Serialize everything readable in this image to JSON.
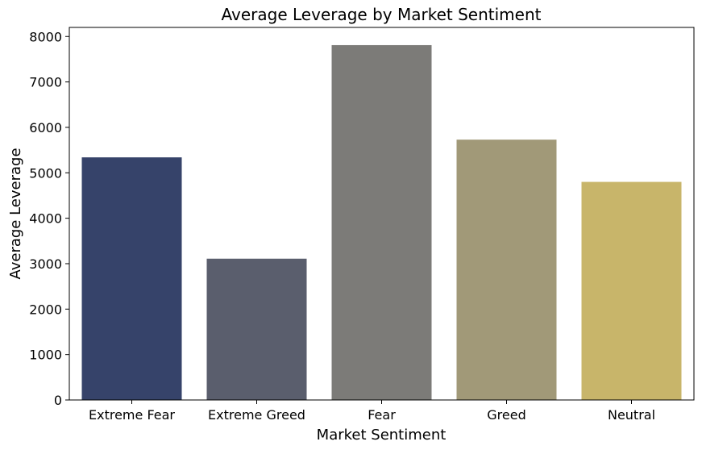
{
  "chart_data": {
    "type": "bar",
    "title": "Average Leverage by Market Sentiment",
    "xlabel": "Market Sentiment",
    "ylabel": "Average Leverage",
    "categories": [
      "Extreme Fear",
      "Extreme Greed",
      "Fear",
      "Greed",
      "Neutral"
    ],
    "values": [
      5340,
      3110,
      7810,
      5730,
      4800
    ],
    "colors": [
      "#36436a",
      "#5a5e6d",
      "#7c7b78",
      "#a19978",
      "#c8b56a"
    ],
    "ylim": [
      0,
      8200
    ],
    "yticks": [
      0,
      1000,
      2000,
      3000,
      4000,
      5000,
      6000,
      7000,
      8000
    ],
    "grid": false,
    "legend": "none"
  }
}
